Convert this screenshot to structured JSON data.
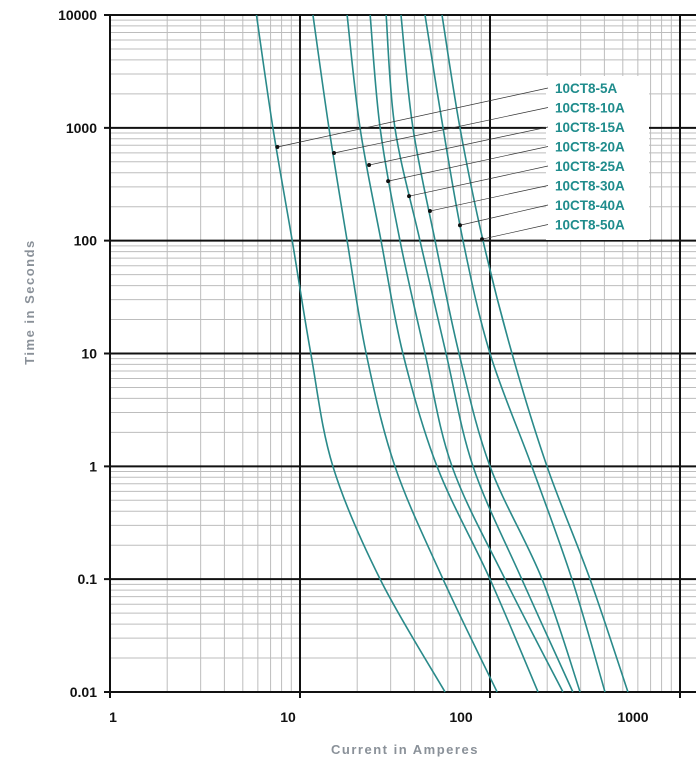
{
  "chart_data": {
    "type": "line",
    "title": "",
    "xlabel": "Current in Amperes",
    "ylabel": "Time in Seconds",
    "x_scale": "log",
    "y_scale": "log",
    "xlim": [
      1,
      1000
    ],
    "ylim": [
      0.01,
      10000
    ],
    "grid": true,
    "x_tick_labels": [
      "1",
      "10",
      "100",
      "1000"
    ],
    "y_tick_labels": [
      "10000",
      "1000",
      "100",
      "10",
      "1",
      "0.1",
      "0.01"
    ],
    "y_ticks": [
      10000,
      1000,
      100,
      10,
      1,
      0.1,
      0.01
    ],
    "legend_placement": "top-right",
    "colors": {
      "curve": "#2a8a8a",
      "label": "#1f8c8c",
      "major_grid": "#111111",
      "minor_grid": "#bdbdbd"
    },
    "series": [
      {
        "name": "10CT8-5A",
        "marker": [
          7.6,
          676
        ],
        "points": [
          [
            5.9,
            10000
          ],
          [
            7.2,
            1000
          ],
          [
            9.1,
            100
          ],
          [
            11.4,
            10
          ],
          [
            14.9,
            1
          ],
          [
            26.4,
            0.1
          ],
          [
            58,
            0.01
          ]
        ]
      },
      {
        "name": "10CT8-10A",
        "marker": [
          15.1,
          598
        ],
        "points": [
          [
            11.7,
            10000
          ],
          [
            14.2,
            1000
          ],
          [
            17.7,
            100
          ],
          [
            22.3,
            10
          ],
          [
            31.6,
            1
          ],
          [
            56.6,
            0.1
          ],
          [
            109,
            0.01
          ]
        ]
      },
      {
        "name": "10CT8-15A",
        "marker": [
          23.1,
          468
        ],
        "points": [
          [
            17.7,
            10000
          ],
          [
            20.7,
            1000
          ],
          [
            26.7,
            100
          ],
          [
            34.8,
            10
          ],
          [
            52.6,
            1
          ],
          [
            100,
            0.1
          ],
          [
            179,
            0.01
          ]
        ]
      },
      {
        "name": "10CT8-20A",
        "marker": [
          29.1,
          337
        ],
        "points": [
          [
            23.4,
            10000
          ],
          [
            26.4,
            1000
          ],
          [
            33.6,
            100
          ],
          [
            45.5,
            10
          ],
          [
            63.1,
            1
          ],
          [
            120,
            0.1
          ],
          [
            242,
            0.01
          ]
        ]
      },
      {
        "name": "10CT8-25A",
        "marker": [
          37.5,
          248
        ],
        "points": [
          [
            28.4,
            10000
          ],
          [
            31.6,
            1000
          ],
          [
            42.8,
            100
          ],
          [
            58.7,
            10
          ],
          [
            81.4,
            1
          ],
          [
            147,
            0.1
          ],
          [
            273,
            0.01
          ]
        ]
      },
      {
        "name": "10CT8-30A",
        "marker": [
          48.3,
          183
        ],
        "points": [
          [
            34,
            10000
          ],
          [
            39.3,
            1000
          ],
          [
            51.4,
            100
          ],
          [
            68.7,
            10
          ],
          [
            100,
            1
          ],
          [
            188,
            0.1
          ],
          [
            298,
            0.01
          ]
        ]
      },
      {
        "name": "10CT8-40A",
        "marker": [
          69.5,
          137
        ],
        "points": [
          [
            45.5,
            10000
          ],
          [
            56.6,
            1000
          ],
          [
            72.1,
            100
          ],
          [
            100,
            10
          ],
          [
            166,
            1
          ],
          [
            270,
            0.1
          ],
          [
            403,
            0.01
          ]
        ]
      },
      {
        "name": "10CT8-50A",
        "marker": [
          90.8,
          103
        ],
        "points": [
          [
            55.9,
            10000
          ],
          [
            69.5,
            1000
          ],
          [
            91.9,
            100
          ],
          [
            130.6,
            10
          ],
          [
            199.5,
            1
          ],
          [
            336,
            0.1
          ],
          [
            532,
            0.01
          ]
        ]
      }
    ]
  }
}
